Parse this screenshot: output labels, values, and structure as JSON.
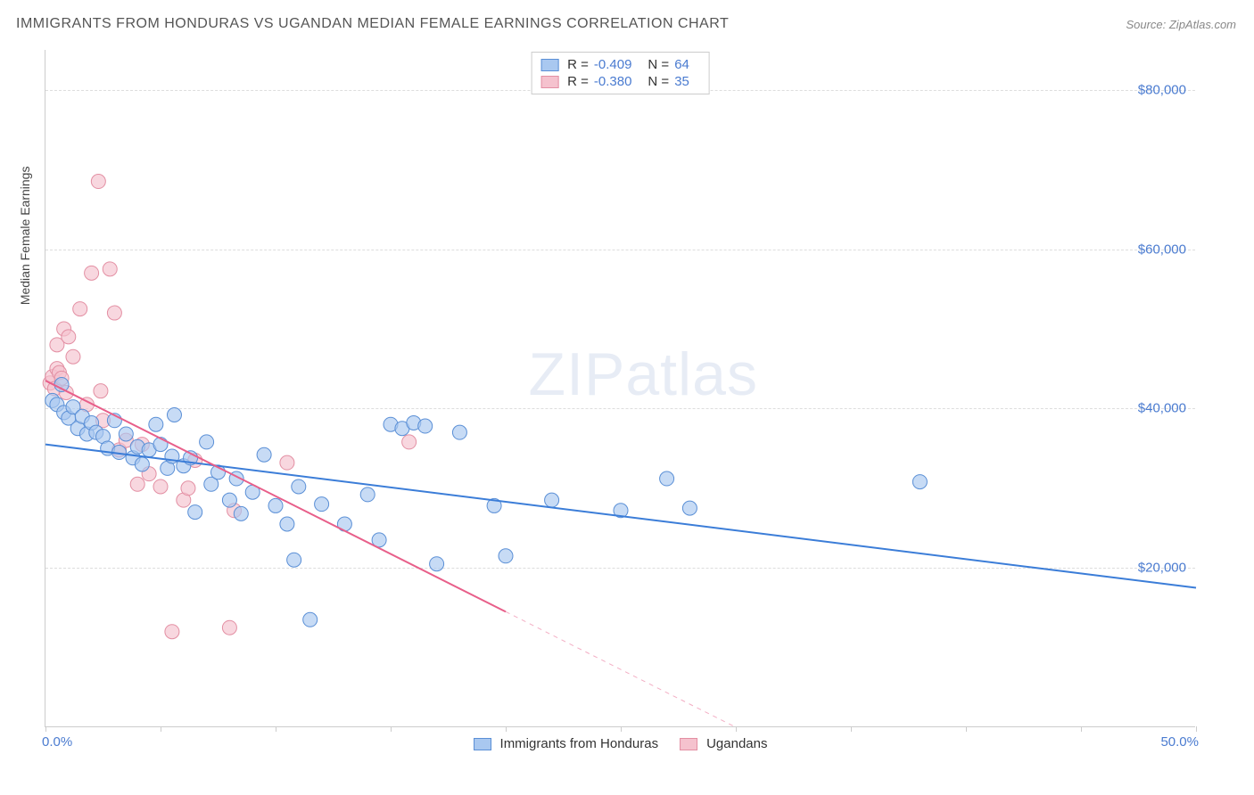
{
  "title": "IMMIGRANTS FROM HONDURAS VS UGANDAN MEDIAN FEMALE EARNINGS CORRELATION CHART",
  "source": "Source: ZipAtlas.com",
  "ylabel": "Median Female Earnings",
  "watermark_zip": "ZIP",
  "watermark_atlas": "atlas",
  "chart": {
    "type": "scatter",
    "background_color": "#ffffff",
    "grid_color": "#dddddd",
    "border_color": "#cccccc",
    "xlim": [
      0,
      50
    ],
    "ylim": [
      0,
      85000
    ],
    "xtick_labels": {
      "0": "0.0%",
      "50": "50.0%"
    },
    "xtick_positions": [
      0,
      5,
      10,
      15,
      20,
      25,
      30,
      35,
      40,
      45,
      50
    ],
    "ytick_positions": [
      20000,
      40000,
      60000,
      80000
    ],
    "ytick_labels": [
      "$20,000",
      "$40,000",
      "$60,000",
      "$80,000"
    ],
    "xtick_color": "#4a7bd0",
    "ytick_color": "#4a7bd0",
    "tick_fontsize": 15,
    "label_fontsize": 14,
    "series": [
      {
        "name": "Immigrants from Honduras",
        "marker_fill": "#a9c8f0",
        "marker_stroke": "#5a8fd6",
        "marker_radius": 8,
        "line_color": "#3b7dd8",
        "line_width": 2,
        "R": "-0.409",
        "N": "64",
        "trend": {
          "x0": 0,
          "y0": 35500,
          "x1": 50,
          "y1": 17500,
          "dash_from_x": 50
        },
        "points": [
          [
            0.3,
            41000
          ],
          [
            0.5,
            40500
          ],
          [
            0.7,
            43000
          ],
          [
            0.8,
            39500
          ],
          [
            1.0,
            38800
          ],
          [
            1.2,
            40200
          ],
          [
            1.4,
            37500
          ],
          [
            1.6,
            39000
          ],
          [
            1.8,
            36800
          ],
          [
            2.0,
            38200
          ],
          [
            2.2,
            37000
          ],
          [
            2.5,
            36500
          ],
          [
            2.7,
            35000
          ],
          [
            3.0,
            38500
          ],
          [
            3.2,
            34500
          ],
          [
            3.5,
            36800
          ],
          [
            3.8,
            33800
          ],
          [
            4.0,
            35200
          ],
          [
            4.2,
            33000
          ],
          [
            4.5,
            34800
          ],
          [
            4.8,
            38000
          ],
          [
            5.0,
            35500
          ],
          [
            5.3,
            32500
          ],
          [
            5.5,
            34000
          ],
          [
            5.6,
            39200
          ],
          [
            6.0,
            32800
          ],
          [
            6.3,
            33800
          ],
          [
            6.5,
            27000
          ],
          [
            7.0,
            35800
          ],
          [
            7.2,
            30500
          ],
          [
            7.5,
            32000
          ],
          [
            8.0,
            28500
          ],
          [
            8.3,
            31200
          ],
          [
            8.5,
            26800
          ],
          [
            9.0,
            29500
          ],
          [
            9.5,
            34200
          ],
          [
            10.0,
            27800
          ],
          [
            10.5,
            25500
          ],
          [
            10.8,
            21000
          ],
          [
            11.0,
            30200
          ],
          [
            11.5,
            13500
          ],
          [
            12.0,
            28000
          ],
          [
            13.0,
            25500
          ],
          [
            14.0,
            29200
          ],
          [
            14.5,
            23500
          ],
          [
            15.0,
            38000
          ],
          [
            15.5,
            37500
          ],
          [
            16.0,
            38200
          ],
          [
            16.5,
            37800
          ],
          [
            17.0,
            20500
          ],
          [
            18.0,
            37000
          ],
          [
            19.5,
            27800
          ],
          [
            20.0,
            21500
          ],
          [
            22.0,
            28500
          ],
          [
            25.0,
            27200
          ],
          [
            27.0,
            31200
          ],
          [
            28.0,
            27500
          ],
          [
            38.0,
            30800
          ]
        ]
      },
      {
        "name": "Ugandans",
        "marker_fill": "#f5c2ce",
        "marker_stroke": "#e38fa3",
        "marker_radius": 8,
        "line_color": "#e85f8a",
        "line_width": 2,
        "R": "-0.380",
        "N": "35",
        "trend": {
          "x0": 0,
          "y0": 43500,
          "x1": 30,
          "y1": 0,
          "dash_from_x": 20
        },
        "points": [
          [
            0.2,
            43200
          ],
          [
            0.3,
            44000
          ],
          [
            0.4,
            42500
          ],
          [
            0.5,
            45000
          ],
          [
            0.6,
            44500
          ],
          [
            0.5,
            48000
          ],
          [
            0.8,
            50000
          ],
          [
            1.0,
            49000
          ],
          [
            0.7,
            43800
          ],
          [
            0.9,
            42000
          ],
          [
            1.2,
            46500
          ],
          [
            1.5,
            52500
          ],
          [
            1.8,
            40500
          ],
          [
            2.0,
            57000
          ],
          [
            2.3,
            68500
          ],
          [
            2.4,
            42200
          ],
          [
            2.5,
            38500
          ],
          [
            2.8,
            57500
          ],
          [
            3.0,
            52000
          ],
          [
            3.2,
            34800
          ],
          [
            3.5,
            36000
          ],
          [
            4.0,
            30500
          ],
          [
            4.2,
            35500
          ],
          [
            4.5,
            31800
          ],
          [
            5.0,
            30200
          ],
          [
            5.5,
            12000
          ],
          [
            6.0,
            28500
          ],
          [
            6.2,
            30000
          ],
          [
            6.5,
            33500
          ],
          [
            8.0,
            12500
          ],
          [
            8.2,
            27200
          ],
          [
            10.5,
            33200
          ],
          [
            15.8,
            35800
          ]
        ]
      }
    ],
    "stats_box": {
      "border_color": "#cccccc",
      "r_label": "R =",
      "n_label": "N ="
    },
    "legend_position": "bottom-center"
  }
}
